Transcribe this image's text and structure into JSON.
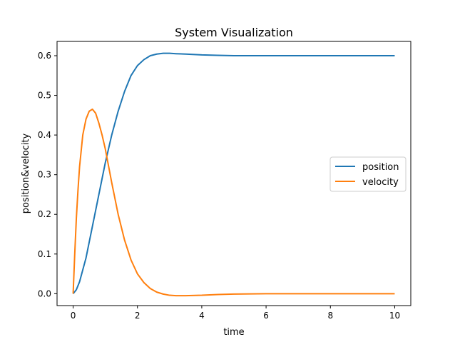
{
  "chart_data": {
    "type": "line",
    "title": "System Visualization",
    "xlabel": "time",
    "ylabel": "position&velocity",
    "xlim": [
      -0.5,
      10.5
    ],
    "ylim": [
      -0.03,
      0.636
    ],
    "xticks": [
      0,
      2,
      4,
      6,
      8,
      10
    ],
    "yticks": [
      0.0,
      0.1,
      0.2,
      0.3,
      0.4,
      0.5,
      0.6
    ],
    "xtick_labels": [
      "0",
      "2",
      "4",
      "6",
      "8",
      "10"
    ],
    "ytick_labels": [
      "0.0",
      "0.1",
      "0.2",
      "0.3",
      "0.4",
      "0.5",
      "0.6"
    ],
    "grid": false,
    "legend_position": "center-right",
    "series": [
      {
        "name": "position",
        "color": "#1f77b4",
        "x": [
          0,
          0.1,
          0.2,
          0.3,
          0.4,
          0.5,
          0.6,
          0.7,
          0.8,
          0.9,
          1.0,
          1.2,
          1.4,
          1.6,
          1.8,
          2.0,
          2.2,
          2.4,
          2.6,
          2.8,
          3.0,
          3.2,
          3.5,
          4.0,
          4.5,
          5.0,
          5.5,
          6.0,
          7.0,
          8.0,
          9.0,
          10.0
        ],
        "values": [
          0.0,
          0.01,
          0.03,
          0.06,
          0.09,
          0.13,
          0.17,
          0.21,
          0.25,
          0.29,
          0.33,
          0.4,
          0.46,
          0.51,
          0.55,
          0.575,
          0.59,
          0.6,
          0.604,
          0.606,
          0.606,
          0.605,
          0.604,
          0.602,
          0.601,
          0.6,
          0.6,
          0.6,
          0.6,
          0.6,
          0.6,
          0.6
        ]
      },
      {
        "name": "velocity",
        "color": "#ff7f0e",
        "x": [
          0,
          0.05,
          0.1,
          0.15,
          0.2,
          0.3,
          0.4,
          0.5,
          0.6,
          0.7,
          0.8,
          0.9,
          1.0,
          1.2,
          1.4,
          1.6,
          1.8,
          2.0,
          2.2,
          2.4,
          2.6,
          2.8,
          3.0,
          3.2,
          3.5,
          4.0,
          4.5,
          5.0,
          6.0,
          7.0,
          8.0,
          10.0
        ],
        "values": [
          0.0,
          0.1,
          0.19,
          0.26,
          0.32,
          0.4,
          0.44,
          0.46,
          0.465,
          0.455,
          0.43,
          0.4,
          0.365,
          0.28,
          0.2,
          0.135,
          0.085,
          0.05,
          0.028,
          0.013,
          0.004,
          -0.001,
          -0.004,
          -0.005,
          -0.005,
          -0.004,
          -0.002,
          -0.001,
          0.0,
          0.0,
          0.0,
          0.0
        ]
      }
    ]
  }
}
